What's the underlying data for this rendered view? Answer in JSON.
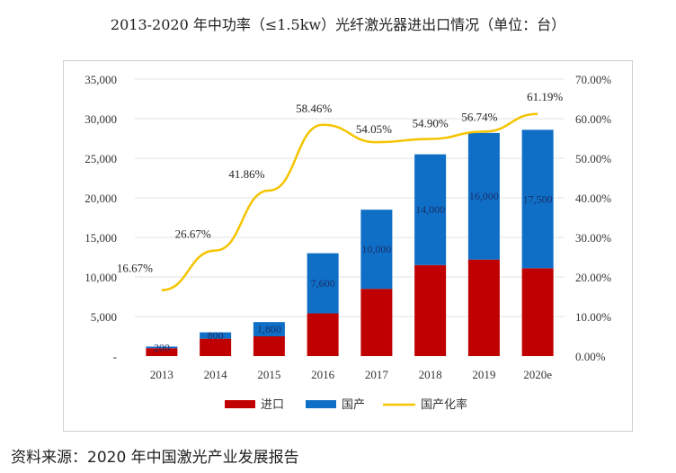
{
  "title": "2013-2020 年中功率（≤1.5kw）光纤激光器进出口情况（单位：台）",
  "source": "资料来源：2020 年中国激光产业发展报告",
  "colors": {
    "import": "#c00000",
    "domestic": "#0f6fc6",
    "rate": "#f5c400",
    "grid": "#e3e3e3"
  },
  "chart_data": {
    "type": "bar",
    "stacked": true,
    "title": "2013-2020 年中功率（≤1.5kw）光纤激光器进出口情况（单位：台）",
    "categories": [
      "2013",
      "2014",
      "2015",
      "2016",
      "2017",
      "2018",
      "2019",
      "2020e"
    ],
    "series": [
      {
        "name": "进口",
        "type": "bar",
        "axis": "left",
        "values": [
          1000,
          2200,
          2500,
          5400,
          8500,
          11500,
          12200,
          11100
        ]
      },
      {
        "name": "国产",
        "type": "bar",
        "axis": "left",
        "values": [
          200,
          800,
          1800,
          7600,
          10000,
          14000,
          16000,
          17500
        ],
        "labels": [
          "200",
          "800",
          "1,800",
          "7,600",
          "10,000",
          "14,000",
          "16,000",
          "17,500"
        ]
      },
      {
        "name": "国产化率",
        "type": "line",
        "axis": "right",
        "values": [
          16.67,
          26.67,
          41.86,
          58.46,
          54.05,
          54.9,
          56.74,
          61.19
        ],
        "labels": [
          "16.67%",
          "26.67%",
          "41.86%",
          "58.46%",
          "54.05%",
          "54.90%",
          "56.74%",
          "61.19%"
        ]
      }
    ],
    "y_left": {
      "ylim": [
        0,
        35000
      ],
      "ticks": [
        0,
        5000,
        10000,
        15000,
        20000,
        25000,
        30000,
        35000
      ],
      "tick_labels": [
        "-",
        "5,000",
        "10,000",
        "15,000",
        "20,000",
        "25,000",
        "30,000",
        "35,000"
      ]
    },
    "y_right": {
      "ylim": [
        0,
        70
      ],
      "ticks": [
        0,
        10,
        20,
        30,
        40,
        50,
        60,
        70
      ],
      "tick_labels": [
        "0.00%",
        "10.00%",
        "20.00%",
        "30.00%",
        "40.00%",
        "50.00%",
        "60.00%",
        "70.00%"
      ]
    },
    "xlabel": "",
    "ylabel": "",
    "grid": true,
    "legend": {
      "placement": "bottom",
      "entries": [
        "进口",
        "国产",
        "国产化率"
      ]
    }
  }
}
